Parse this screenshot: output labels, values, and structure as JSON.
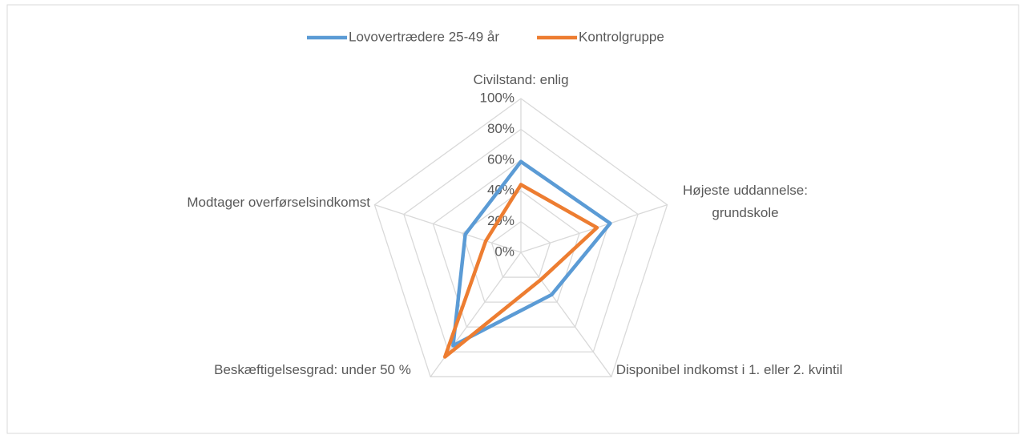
{
  "chart_data": {
    "type": "radar",
    "categories": [
      "Civilstand: enlig",
      "Højeste uddannelse: grundskole",
      "Disponibel indkomst i 1. eller 2. kvintil",
      "Beskæftigelsesgrad: under 50 %",
      "Modtager overførselsindkomst"
    ],
    "series": [
      {
        "name": "Lovovertrædere 25-49 år",
        "color": "#5b9bd5",
        "values": [
          59,
          61,
          34,
          75,
          38
        ]
      },
      {
        "name": "Kontrolgruppe",
        "color": "#ed7d31",
        "values": [
          44,
          52,
          22,
          84,
          24
        ]
      }
    ],
    "ylim": [
      0,
      100
    ],
    "yticks": [
      {
        "value": 0,
        "label": "0%"
      },
      {
        "value": 20,
        "label": "20%"
      },
      {
        "value": 40,
        "label": "40%"
      },
      {
        "value": 60,
        "label": "60%"
      },
      {
        "value": 80,
        "label": "80%"
      },
      {
        "value": 100,
        "label": "100%"
      }
    ],
    "grid": true,
    "legend": "top"
  }
}
